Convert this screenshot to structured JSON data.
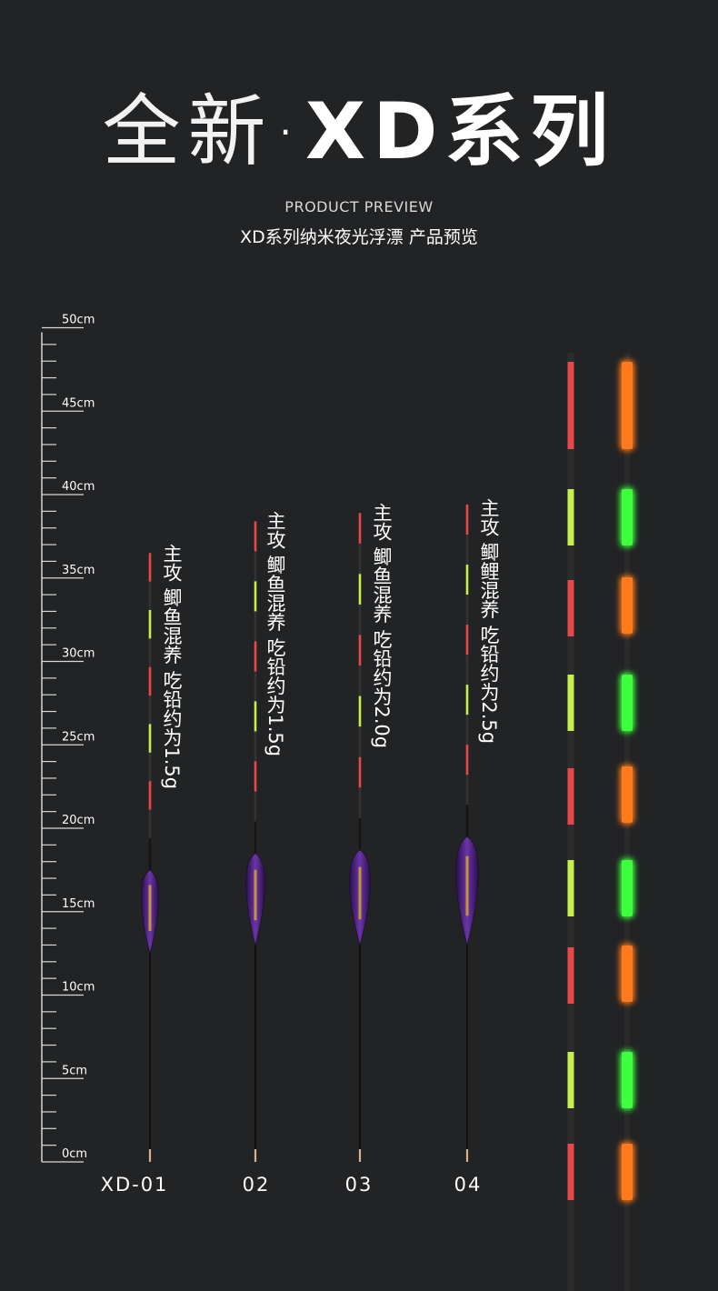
{
  "header": {
    "title_thin": "全新·",
    "title_bold": "XD系列",
    "subtitle_en": "PRODUCT PREVIEW",
    "subtitle_cn": "XD系列纳米夜光浮漂 产品预览"
  },
  "ruler": {
    "unit": "cm",
    "labels": [
      "0cm",
      "5cm",
      "10cm",
      "15cm",
      "20cm",
      "25cm",
      "30cm",
      "35cm",
      "40cm",
      "45cm",
      "50cm"
    ]
  },
  "floats": [
    {
      "model": "XD-01",
      "description": "主攻 鲫鱼混养 吃铅约为1.5g",
      "top_cm": 36.5,
      "body_top_cm": 17.5,
      "body_bottom_cm": 12.5
    },
    {
      "model": "02",
      "description": "主攻 鲫鱼混养 吃铅约为1.5g",
      "top_cm": 38.4,
      "body_top_cm": 18.5,
      "body_bottom_cm": 13.0
    },
    {
      "model": "03",
      "description": "主攻 鲫鱼混养 吃铅约为2.0g",
      "top_cm": 38.9,
      "body_top_cm": 18.7,
      "body_bottom_cm": 13.0
    },
    {
      "model": "04",
      "description": "主攻 鲫鲤混养 吃铅约为2.5g",
      "top_cm": 39.4,
      "body_top_cm": 19.5,
      "body_bottom_cm": 13.0
    }
  ],
  "colors": {
    "background": "#222325",
    "tip_red": "#e8484a",
    "tip_green": "#c8f04a",
    "glow_orange": "#ff7a1a",
    "glow_green": "#3cff3c",
    "body_purple": "#5a2a8c"
  }
}
